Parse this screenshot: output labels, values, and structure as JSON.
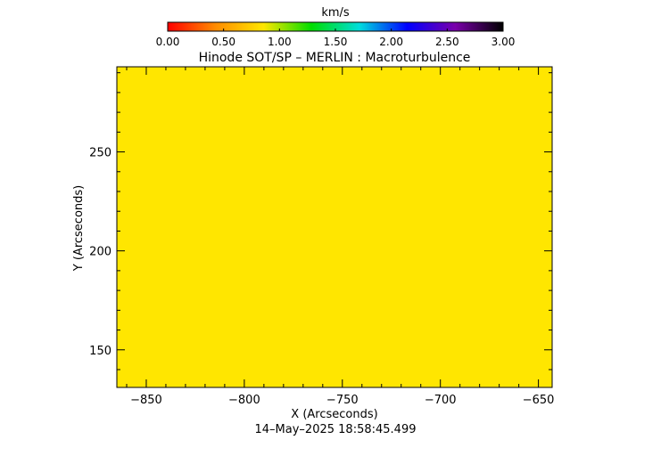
{
  "chart_data": {
    "type": "heatmap",
    "title": "Hinode SOT/SP – MERLIN : Macroturbulence",
    "xlabel": "X (Arcseconds)",
    "ylabel": "Y (Arcseconds)",
    "xlim": [
      -865,
      -643
    ],
    "ylim": [
      131,
      293
    ],
    "x_ticks": [
      -850,
      -800,
      -750,
      -700,
      -650
    ],
    "y_ticks": [
      150,
      200,
      250
    ],
    "field_value": 1.2,
    "field_color": "#ffe600",
    "colorbar": {
      "label": "km/s",
      "range": [
        0.0,
        3.0
      ],
      "tick_labels": [
        "0.00",
        "0.50",
        "1.00",
        "1.50",
        "2.00",
        "2.50",
        "3.00"
      ],
      "colors": [
        "#ff0000",
        "#ff8c00",
        "#ffe600",
        "#00dd00",
        "#00dddd",
        "#0000ff",
        "#7a00aa",
        "#000000"
      ]
    },
    "timestamp": "14–May–2025 18:58:45.499"
  }
}
